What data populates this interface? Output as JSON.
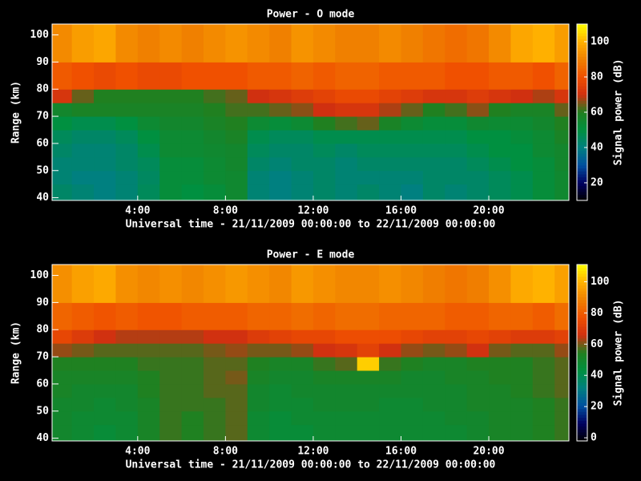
{
  "chart_data": [
    {
      "type": "heatmap",
      "title": "Power - O mode",
      "ylabel": "Range (km)",
      "xlabel": "Universal time - 21/11/2009 00:00:00 to 22/11/2009 00:00:00",
      "colorbar_label": "Signal power (dB)",
      "x_edges": [
        0,
        1,
        2,
        3,
        4,
        5,
        6,
        7,
        8,
        9,
        10,
        11,
        12,
        13,
        14,
        15,
        16,
        17,
        18,
        19,
        20,
        21,
        22,
        23,
        24
      ],
      "y_edges": [
        39,
        45,
        50,
        55,
        60,
        65,
        70,
        75,
        80,
        90,
        104
      ],
      "values": [
        [
          44,
          42,
          40,
          42,
          46,
          52,
          50,
          52,
          55,
          42,
          40,
          42,
          44,
          42,
          44,
          42,
          40,
          44,
          42,
          44,
          46,
          48,
          52,
          55
        ],
        [
          42,
          40,
          40,
          42,
          45,
          52,
          52,
          54,
          55,
          42,
          40,
          42,
          44,
          42,
          42,
          42,
          42,
          44,
          44,
          44,
          46,
          48,
          52,
          55
        ],
        [
          42,
          42,
          42,
          44,
          46,
          52,
          52,
          54,
          56,
          44,
          42,
          44,
          44,
          42,
          44,
          44,
          44,
          44,
          44,
          46,
          48,
          50,
          52,
          56
        ],
        [
          44,
          42,
          42,
          44,
          48,
          54,
          54,
          55,
          56,
          46,
          44,
          44,
          46,
          44,
          46,
          46,
          46,
          46,
          46,
          48,
          50,
          50,
          54,
          56
        ],
        [
          46,
          44,
          44,
          46,
          50,
          54,
          54,
          56,
          58,
          48,
          46,
          46,
          48,
          48,
          48,
          48,
          48,
          48,
          48,
          50,
          50,
          52,
          54,
          58
        ],
        [
          50,
          48,
          48,
          50,
          54,
          56,
          56,
          58,
          60,
          54,
          52,
          54,
          60,
          62,
          64,
          58,
          54,
          52,
          52,
          55,
          54,
          54,
          56,
          60
        ],
        [
          56,
          58,
          58,
          58,
          58,
          58,
          58,
          60,
          62,
          62,
          64,
          66,
          70,
          72,
          72,
          68,
          64,
          60,
          62,
          66,
          60,
          58,
          58,
          64
        ],
        [
          72,
          64,
          60,
          60,
          60,
          60,
          60,
          62,
          64,
          70,
          72,
          74,
          76,
          78,
          78,
          76,
          74,
          72,
          72,
          74,
          72,
          70,
          68,
          72
        ],
        [
          82,
          80,
          78,
          80,
          78,
          78,
          80,
          80,
          80,
          82,
          82,
          84,
          82,
          84,
          84,
          82,
          82,
          82,
          80,
          80,
          82,
          82,
          80,
          84
        ],
        [
          92,
          96,
          98,
          92,
          90,
          92,
          90,
          92,
          94,
          92,
          90,
          94,
          92,
          90,
          90,
          92,
          90,
          88,
          86,
          88,
          92,
          98,
          100,
          96
        ]
      ],
      "xlim": [
        0.1,
        23.65
      ],
      "ylim": [
        39,
        104
      ],
      "xticks": [
        {
          "value": 4,
          "label": "4:00"
        },
        {
          "value": 8,
          "label": "8:00"
        },
        {
          "value": 12,
          "label": "12:00"
        },
        {
          "value": 16,
          "label": "16:00"
        },
        {
          "value": 20,
          "label": "20:00"
        }
      ],
      "yticks": [
        40,
        50,
        60,
        70,
        80,
        90,
        100
      ],
      "clim": [
        10,
        110
      ],
      "cticks": [
        20,
        40,
        60,
        80,
        100
      ],
      "colormap": [
        "#000000",
        "#000060",
        "#0050a0",
        "#008080",
        "#009040",
        "#208020",
        "#d03010",
        "#f05000",
        "#f08000",
        "#ffb000",
        "#ffff00"
      ]
    },
    {
      "type": "heatmap",
      "title": "Power - E mode",
      "ylabel": "Range (km)",
      "xlabel": "Universal time - 21/11/2009 00:00:00 to 22/11/2009 00:00:00",
      "colorbar_label": "Signal power (dB)",
      "x_edges": [
        0,
        1,
        2,
        3,
        4,
        5,
        6,
        7,
        8,
        9,
        10,
        11,
        12,
        13,
        14,
        15,
        16,
        17,
        18,
        19,
        20,
        21,
        22,
        23,
        24
      ],
      "y_edges": [
        39,
        45,
        50,
        55,
        60,
        65,
        70,
        75,
        80,
        90,
        104
      ],
      "values": [
        [
          50,
          48,
          46,
          48,
          52,
          56,
          54,
          56,
          58,
          48,
          46,
          46,
          48,
          48,
          48,
          48,
          48,
          48,
          48,
          50,
          52,
          52,
          54,
          56
        ],
        [
          50,
          48,
          48,
          48,
          52,
          56,
          54,
          56,
          58,
          48,
          46,
          48,
          48,
          48,
          48,
          48,
          48,
          48,
          50,
          50,
          52,
          52,
          54,
          56
        ],
        [
          50,
          50,
          48,
          50,
          52,
          56,
          56,
          56,
          58,
          50,
          48,
          48,
          50,
          50,
          50,
          48,
          48,
          50,
          50,
          52,
          52,
          52,
          54,
          56
        ],
        [
          52,
          50,
          50,
          50,
          54,
          56,
          56,
          58,
          58,
          50,
          48,
          50,
          50,
          50,
          50,
          50,
          50,
          50,
          50,
          52,
          52,
          54,
          56,
          58
        ],
        [
          52,
          52,
          52,
          52,
          54,
          56,
          56,
          58,
          60,
          52,
          50,
          50,
          52,
          52,
          52,
          52,
          50,
          50,
          52,
          52,
          54,
          54,
          56,
          58
        ],
        [
          54,
          54,
          54,
          54,
          56,
          56,
          56,
          58,
          58,
          54,
          52,
          52,
          56,
          58,
          104,
          56,
          54,
          52,
          52,
          54,
          54,
          54,
          56,
          58
        ],
        [
          62,
          60,
          58,
          58,
          58,
          58,
          58,
          60,
          62,
          60,
          60,
          62,
          66,
          68,
          72,
          66,
          62,
          60,
          62,
          66,
          60,
          58,
          58,
          62
        ],
        [
          74,
          70,
          66,
          64,
          64,
          64,
          64,
          66,
          66,
          70,
          72,
          74,
          74,
          76,
          76,
          76,
          74,
          72,
          72,
          74,
          72,
          70,
          70,
          72
        ],
        [
          82,
          80,
          78,
          80,
          78,
          78,
          80,
          80,
          80,
          82,
          82,
          84,
          82,
          84,
          84,
          82,
          82,
          82,
          80,
          80,
          82,
          82,
          80,
          84
        ],
        [
          92,
          96,
          98,
          92,
          90,
          92,
          90,
          92,
          94,
          92,
          90,
          94,
          92,
          90,
          90,
          92,
          90,
          88,
          86,
          88,
          92,
          98,
          100,
          96
        ]
      ],
      "xlim": [
        0.1,
        23.65
      ],
      "ylim": [
        39,
        104
      ],
      "xticks": [
        {
          "value": 4,
          "label": "4:00"
        },
        {
          "value": 8,
          "label": "8:00"
        },
        {
          "value": 12,
          "label": "12:00"
        },
        {
          "value": 16,
          "label": "16:00"
        },
        {
          "value": 20,
          "label": "20:00"
        }
      ],
      "yticks": [
        40,
        50,
        60,
        70,
        80,
        90,
        100
      ],
      "clim": [
        -2,
        111
      ],
      "cticks": [
        0,
        20,
        40,
        60,
        80,
        100
      ],
      "colormap": [
        "#000000",
        "#000060",
        "#0050a0",
        "#008080",
        "#009040",
        "#208020",
        "#d03010",
        "#f05000",
        "#f08000",
        "#ffb000",
        "#ffff00"
      ]
    }
  ]
}
